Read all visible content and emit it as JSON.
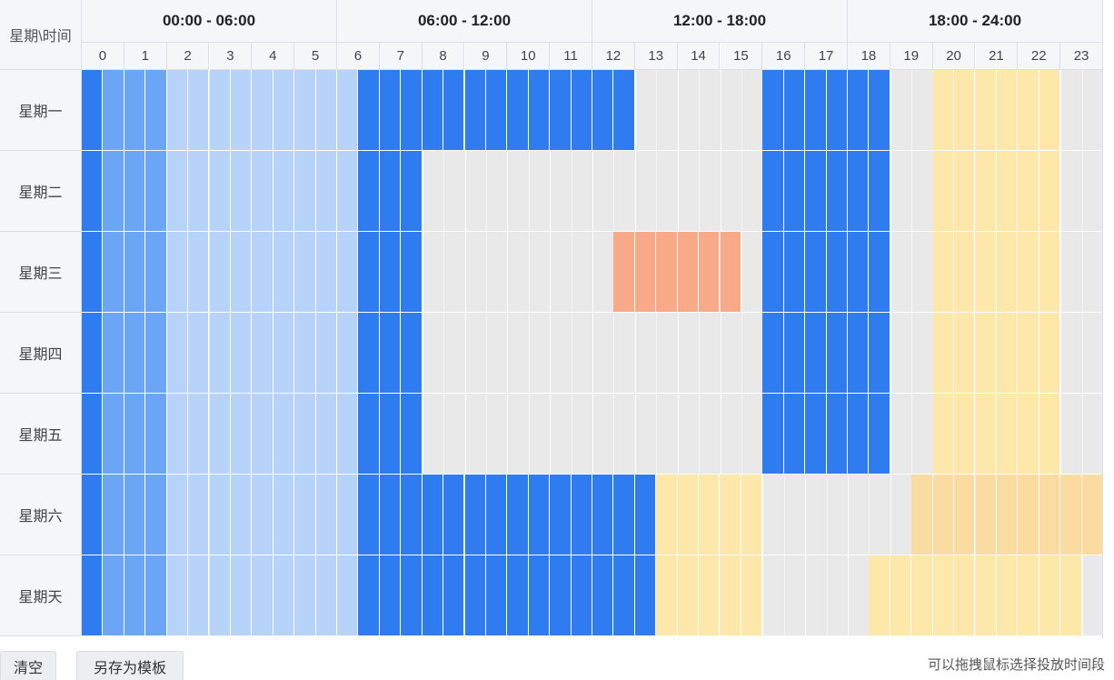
{
  "corner_label": "星期\\时间",
  "period_headers": [
    "00:00 - 06:00",
    "06:00 - 12:00",
    "12:00 - 18:00",
    "18:00 - 24:00"
  ],
  "hours": [
    "0",
    "1",
    "2",
    "3",
    "4",
    "5",
    "6",
    "7",
    "8",
    "9",
    "10",
    "11",
    "12",
    "13",
    "14",
    "15",
    "16",
    "17",
    "18",
    "19",
    "20",
    "21",
    "22",
    "23"
  ],
  "days": [
    "星期一",
    "星期二",
    "星期三",
    "星期四",
    "星期五",
    "星期六",
    "星期天"
  ],
  "colors": {
    "empty": "#e9e9ea",
    "deep_blue": "#2e7cf0",
    "mid_blue": "#6aa6f5",
    "light_blue": "#b8d3fa",
    "orange": "#f8a987",
    "light_yellow": "#fde8a9",
    "yellow": "#fbdca0"
  },
  "schedule": [
    {
      "day": 0,
      "start": 0,
      "end": 0.5,
      "color": "deep_blue"
    },
    {
      "day": 0,
      "start": 0.5,
      "end": 2,
      "color": "mid_blue"
    },
    {
      "day": 0,
      "start": 2,
      "end": 6.5,
      "color": "light_blue"
    },
    {
      "day": 0,
      "start": 6.5,
      "end": 13,
      "color": "deep_blue"
    },
    {
      "day": 0,
      "start": 16,
      "end": 19,
      "color": "deep_blue"
    },
    {
      "day": 0,
      "start": 20,
      "end": 23,
      "color": "light_yellow"
    },
    {
      "day": 1,
      "start": 0,
      "end": 0.5,
      "color": "deep_blue"
    },
    {
      "day": 1,
      "start": 0.5,
      "end": 2,
      "color": "mid_blue"
    },
    {
      "day": 1,
      "start": 2,
      "end": 6.5,
      "color": "light_blue"
    },
    {
      "day": 1,
      "start": 6.5,
      "end": 8,
      "color": "deep_blue"
    },
    {
      "day": 1,
      "start": 16,
      "end": 19,
      "color": "deep_blue"
    },
    {
      "day": 1,
      "start": 20,
      "end": 23,
      "color": "light_yellow"
    },
    {
      "day": 2,
      "start": 0,
      "end": 0.5,
      "color": "deep_blue"
    },
    {
      "day": 2,
      "start": 0.5,
      "end": 2,
      "color": "mid_blue"
    },
    {
      "day": 2,
      "start": 2,
      "end": 6.5,
      "color": "light_blue"
    },
    {
      "day": 2,
      "start": 6.5,
      "end": 8,
      "color": "deep_blue"
    },
    {
      "day": 2,
      "start": 12.5,
      "end": 15.5,
      "color": "orange"
    },
    {
      "day": 2,
      "start": 16,
      "end": 19,
      "color": "deep_blue"
    },
    {
      "day": 2,
      "start": 20,
      "end": 23,
      "color": "light_yellow"
    },
    {
      "day": 3,
      "start": 0,
      "end": 0.5,
      "color": "deep_blue"
    },
    {
      "day": 3,
      "start": 0.5,
      "end": 2,
      "color": "mid_blue"
    },
    {
      "day": 3,
      "start": 2,
      "end": 6.5,
      "color": "light_blue"
    },
    {
      "day": 3,
      "start": 6.5,
      "end": 8,
      "color": "deep_blue"
    },
    {
      "day": 3,
      "start": 16,
      "end": 19,
      "color": "deep_blue"
    },
    {
      "day": 3,
      "start": 20,
      "end": 23,
      "color": "light_yellow"
    },
    {
      "day": 4,
      "start": 0,
      "end": 0.5,
      "color": "deep_blue"
    },
    {
      "day": 4,
      "start": 0.5,
      "end": 2,
      "color": "mid_blue"
    },
    {
      "day": 4,
      "start": 2,
      "end": 6.5,
      "color": "light_blue"
    },
    {
      "day": 4,
      "start": 6.5,
      "end": 8,
      "color": "deep_blue"
    },
    {
      "day": 4,
      "start": 16,
      "end": 19,
      "color": "deep_blue"
    },
    {
      "day": 4,
      "start": 20,
      "end": 23,
      "color": "light_yellow"
    },
    {
      "day": 5,
      "start": 0,
      "end": 0.5,
      "color": "deep_blue"
    },
    {
      "day": 5,
      "start": 0.5,
      "end": 2,
      "color": "mid_blue"
    },
    {
      "day": 5,
      "start": 2,
      "end": 6.5,
      "color": "light_blue"
    },
    {
      "day": 5,
      "start": 6.5,
      "end": 13.5,
      "color": "deep_blue"
    },
    {
      "day": 5,
      "start": 13.5,
      "end": 16,
      "color": "light_yellow"
    },
    {
      "day": 5,
      "start": 19.5,
      "end": 24,
      "color": "yellow"
    },
    {
      "day": 6,
      "start": 0,
      "end": 0.5,
      "color": "deep_blue"
    },
    {
      "day": 6,
      "start": 0.5,
      "end": 2,
      "color": "mid_blue"
    },
    {
      "day": 6,
      "start": 2,
      "end": 6.5,
      "color": "light_blue"
    },
    {
      "day": 6,
      "start": 6.5,
      "end": 13.5,
      "color": "deep_blue"
    },
    {
      "day": 6,
      "start": 13.5,
      "end": 16,
      "color": "light_yellow"
    },
    {
      "day": 6,
      "start": 18.5,
      "end": 23.5,
      "color": "light_yellow"
    }
  ],
  "buttons": {
    "clear": "清空",
    "save_template": "另存为模板"
  },
  "hint": "可以拖拽鼠标选择投放时间段"
}
